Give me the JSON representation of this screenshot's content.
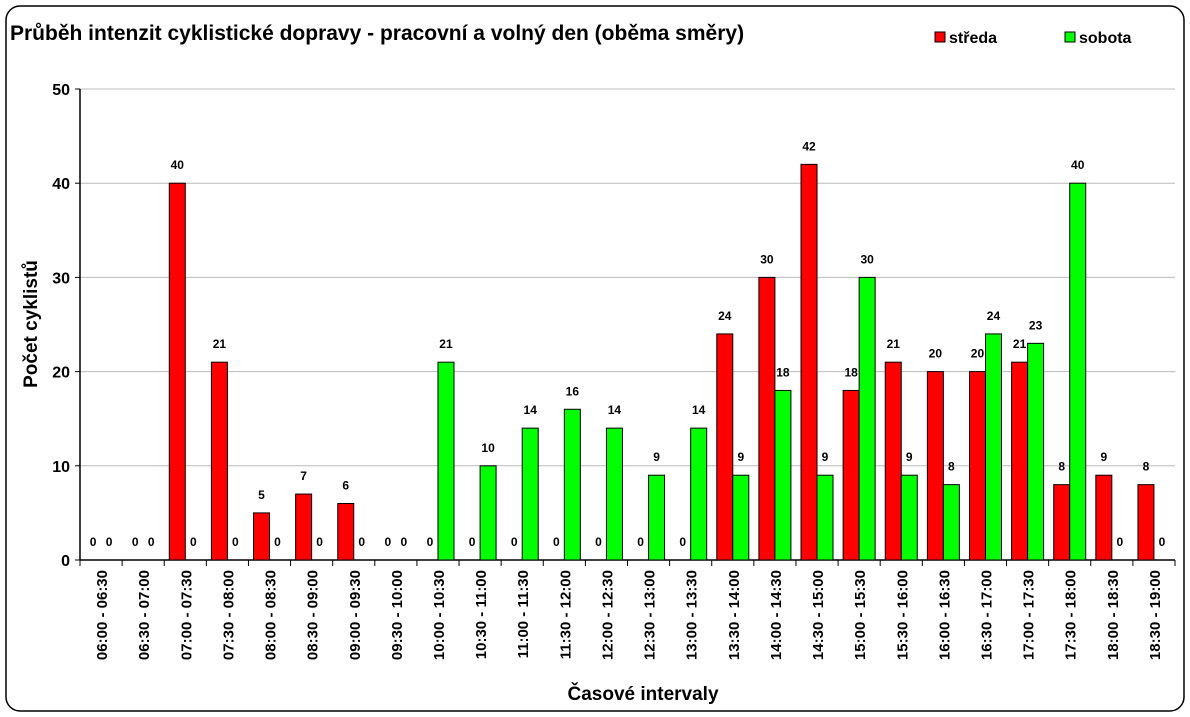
{
  "chart_data": {
    "type": "bar",
    "title": "Průběh intenzit cyklistické dopravy - pracovní a volný den (oběma směry)",
    "x_label": "Časové intervaly",
    "y_label": "Počet cyklistů",
    "categories": [
      "06:00 - 06:30",
      "06:30 - 07:00",
      "07:00 - 07:30",
      "07:30 - 08:00",
      "08:00 - 08:30",
      "08:30 - 09:00",
      "09:00 - 09:30",
      "09:30 - 10:00",
      "10:00 - 10:30",
      "10:30 - 11:00",
      "11:00 - 11:30",
      "11:30 - 12:00",
      "12:00 - 12:30",
      "12:30 - 13:00",
      "13:00 - 13:30",
      "13:30 - 14:00",
      "14:00 - 14:30",
      "14:30 - 15:00",
      "15:00 - 15:30",
      "15:30 - 16:00",
      "16:00 - 16:30",
      "16:30 - 17:00",
      "17:00 - 17:30",
      "17:30 - 18:00",
      "18:00 - 18:30",
      "18:30 - 19:00"
    ],
    "series": [
      {
        "name": "středa",
        "color": "#ff0000",
        "values": [
          0,
          0,
          40,
          21,
          5,
          7,
          6,
          0,
          0,
          0,
          0,
          0,
          0,
          0,
          0,
          24,
          30,
          42,
          18,
          21,
          20,
          20,
          21,
          8,
          9,
          8
        ]
      },
      {
        "name": "sobota",
        "color": "#00ff00",
        "values": [
          0,
          0,
          0,
          0,
          0,
          0,
          0,
          0,
          21,
          10,
          14,
          16,
          14,
          9,
          14,
          9,
          18,
          9,
          30,
          9,
          8,
          24,
          23,
          40,
          0,
          0
        ]
      }
    ],
    "ylim": [
      0,
      50
    ],
    "yticks": [
      0,
      10,
      20,
      30,
      40,
      50
    ],
    "grid": true,
    "legend": "top-right"
  }
}
